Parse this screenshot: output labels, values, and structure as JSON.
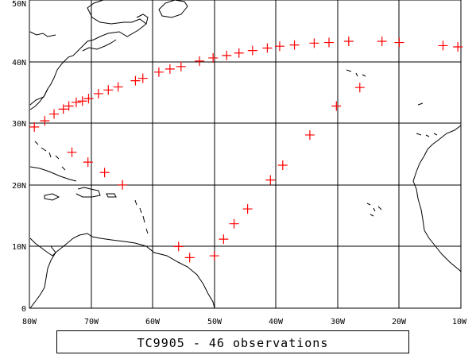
{
  "caption": "TC9905 - 46 observations",
  "colors": {
    "marker": "#ff0000",
    "coast": "#000000",
    "grid": "#000000",
    "background": "#ffffff"
  },
  "map": {
    "lon_range": [
      -80,
      -10
    ],
    "lat_range": [
      0,
      50
    ],
    "lon_ticks": [
      {
        "value": -80,
        "label": "80W"
      },
      {
        "value": -70,
        "label": "70W"
      },
      {
        "value": -60,
        "label": "60W"
      },
      {
        "value": -50,
        "label": "50W"
      },
      {
        "value": -40,
        "label": "40W"
      },
      {
        "value": -30,
        "label": "30W"
      },
      {
        "value": -20,
        "label": "20W"
      },
      {
        "value": -10,
        "label": "10W"
      }
    ],
    "lat_ticks": [
      {
        "value": 0,
        "label": "0"
      },
      {
        "value": 10,
        "label": "10N"
      },
      {
        "value": 20,
        "label": "20N"
      },
      {
        "value": 30,
        "label": "30N"
      },
      {
        "value": 40,
        "label": "40N"
      },
      {
        "value": 50,
        "label": "50N"
      }
    ],
    "grid": true,
    "marker_symbol": "plus"
  },
  "observations": [
    {
      "lon": -55.8,
      "lat": 10.0
    },
    {
      "lon": -54.0,
      "lat": 8.2
    },
    {
      "lon": -50.0,
      "lat": 8.5
    },
    {
      "lon": -48.5,
      "lat": 11.2
    },
    {
      "lon": -46.8,
      "lat": 13.7
    },
    {
      "lon": -44.6,
      "lat": 16.1
    },
    {
      "lon": -40.9,
      "lat": 20.8
    },
    {
      "lon": -38.9,
      "lat": 23.2
    },
    {
      "lon": -34.5,
      "lat": 28.1
    },
    {
      "lon": -30.2,
      "lat": 32.8
    },
    {
      "lon": -26.4,
      "lat": 35.8
    },
    {
      "lon": -79.2,
      "lat": 29.4
    },
    {
      "lon": -77.5,
      "lat": 30.4
    },
    {
      "lon": -76.0,
      "lat": 31.5
    },
    {
      "lon": -74.5,
      "lat": 32.3
    },
    {
      "lon": -73.6,
      "lat": 32.8
    },
    {
      "lon": -72.4,
      "lat": 33.4
    },
    {
      "lon": -71.4,
      "lat": 33.6
    },
    {
      "lon": -70.4,
      "lat": 34.0
    },
    {
      "lon": -68.8,
      "lat": 34.8
    },
    {
      "lon": -67.2,
      "lat": 35.4
    },
    {
      "lon": -65.6,
      "lat": 35.9
    },
    {
      "lon": -62.8,
      "lat": 36.9
    },
    {
      "lon": -61.6,
      "lat": 37.3
    },
    {
      "lon": -59.0,
      "lat": 38.3
    },
    {
      "lon": -57.2,
      "lat": 38.8
    },
    {
      "lon": -55.4,
      "lat": 39.2
    },
    {
      "lon": -52.4,
      "lat": 40.1
    },
    {
      "lon": -50.2,
      "lat": 40.6
    },
    {
      "lon": -48.0,
      "lat": 41.0
    },
    {
      "lon": -46.0,
      "lat": 41.4
    },
    {
      "lon": -43.8,
      "lat": 41.8
    },
    {
      "lon": -41.4,
      "lat": 42.2
    },
    {
      "lon": -39.4,
      "lat": 42.5
    },
    {
      "lon": -37.0,
      "lat": 42.7
    },
    {
      "lon": -33.8,
      "lat": 43.0
    },
    {
      "lon": -31.4,
      "lat": 43.1
    },
    {
      "lon": -28.2,
      "lat": 43.3
    },
    {
      "lon": -22.8,
      "lat": 43.3
    },
    {
      "lon": -20.0,
      "lat": 43.1
    },
    {
      "lon": -12.9,
      "lat": 42.6
    },
    {
      "lon": -10.5,
      "lat": 42.4
    },
    {
      "lon": -73.1,
      "lat": 25.3
    },
    {
      "lon": -70.5,
      "lat": 23.7
    },
    {
      "lon": -67.8,
      "lat": 22.0
    },
    {
      "lon": -64.9,
      "lat": 20.0
    }
  ]
}
